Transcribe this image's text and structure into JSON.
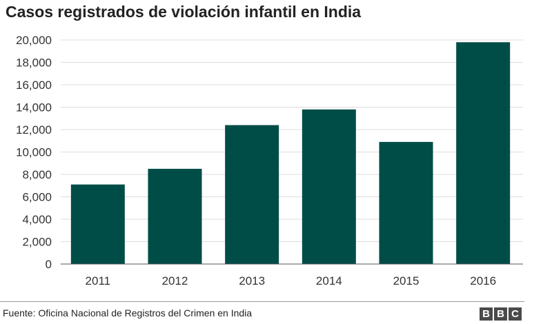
{
  "title": "Casos registrados de violación infantil en India",
  "source": "Fuente: Oficina Nacional de Registros del Crimen en India",
  "logo": [
    "B",
    "B",
    "C"
  ],
  "colors": {
    "bar": "#004d47",
    "grid": "#dcdcdc",
    "axis": "#555555"
  },
  "chart_data": {
    "type": "bar",
    "title": "Casos registrados de violación infantil en India",
    "xlabel": "",
    "ylabel": "",
    "categories": [
      "2011",
      "2012",
      "2013",
      "2014",
      "2015",
      "2016"
    ],
    "values": [
      7100,
      8500,
      12400,
      13800,
      10900,
      19800
    ],
    "ylim": [
      0,
      20000
    ],
    "yticks": [
      0,
      2000,
      4000,
      6000,
      8000,
      10000,
      12000,
      14000,
      16000,
      18000,
      20000
    ],
    "ytick_labels": [
      "0",
      "2,000",
      "4,000",
      "6,000",
      "8,000",
      "10,000",
      "12,000",
      "14,000",
      "16,000",
      "18,000",
      "20,000"
    ],
    "grid": true,
    "legend": "none"
  }
}
